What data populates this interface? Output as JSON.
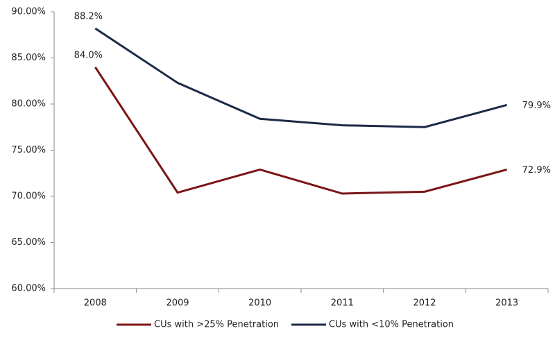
{
  "chart_data": {
    "type": "line",
    "categories": [
      "2008",
      "2009",
      "2010",
      "2011",
      "2012",
      "2013"
    ],
    "series": [
      {
        "name": "CUs with >25% Penetration",
        "color": "#7b1416",
        "values": [
          84.0,
          70.4,
          72.9,
          70.3,
          70.5,
          72.9
        ],
        "value_labels": [
          "84.0%",
          null,
          null,
          null,
          null,
          "72.9%"
        ]
      },
      {
        "name": "CUs with <10% Penetration",
        "color": "#1b2a47",
        "values": [
          88.2,
          82.3,
          78.4,
          77.7,
          77.5,
          79.9
        ],
        "value_labels": [
          "88.2%",
          null,
          null,
          null,
          null,
          "79.9%"
        ]
      }
    ],
    "ylim": [
      60,
      90
    ],
    "yticks": [
      {
        "value": 60,
        "label": "60.00%"
      },
      {
        "value": 65,
        "label": "65.00%"
      },
      {
        "value": 70,
        "label": "70.00%"
      },
      {
        "value": 75,
        "label": "75.00%"
      },
      {
        "value": 80,
        "label": "80.00%"
      },
      {
        "value": 85,
        "label": "85.00%"
      },
      {
        "value": 90,
        "label": "90.00%"
      }
    ],
    "grid": false,
    "legend": "bottom"
  }
}
